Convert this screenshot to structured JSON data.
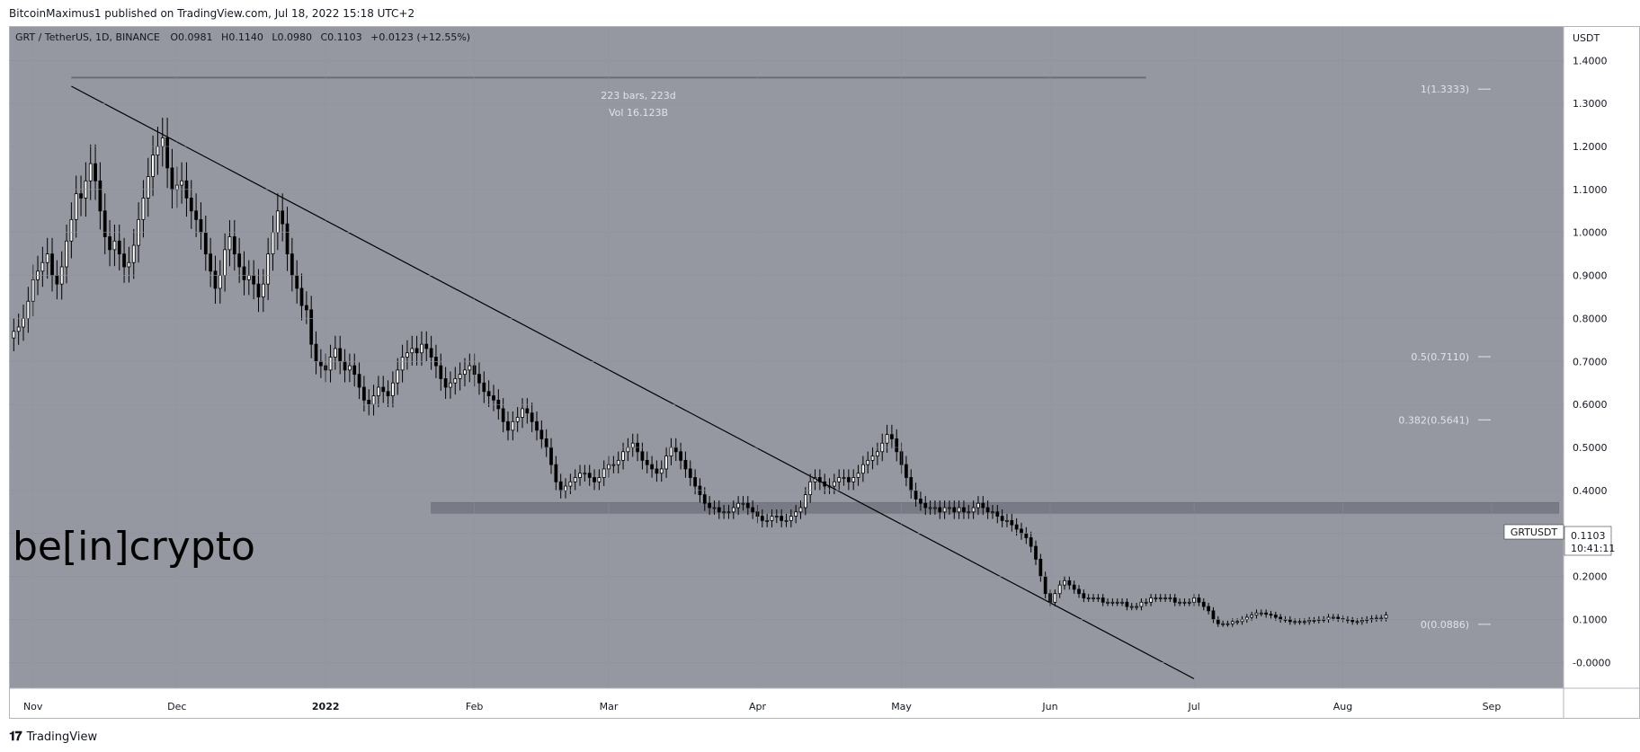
{
  "header": {
    "publisher": "BitcoinMaximus1 published on TradingView.com, Jul 18, 2022 15:18 UTC+2"
  },
  "footer": {
    "brand": "TradingView"
  },
  "watermark": {
    "text": "be[in]crypto"
  },
  "chart_data": {
    "type": "candlestick",
    "symbol_line": {
      "title": "GRT / TetherUS, 1D, BINANCE",
      "o_label": "O",
      "o_value": "0.0981",
      "h_label": "H",
      "h_value": "0.1140",
      "l_label": "L",
      "l_value": "0.0980",
      "c_label": "C",
      "c_value": "0.1103",
      "change": "+0.0123 (+12.55%)"
    },
    "y_axis": {
      "unit": "USDT",
      "ticks": [
        "1.4000",
        "1.3000",
        "1.2000",
        "1.1000",
        "1.0000",
        "0.9000",
        "0.8000",
        "0.7000",
        "0.6000",
        "0.5000",
        "0.4000",
        "0.3000",
        "0.2000",
        "0.1000",
        "-0.0000"
      ],
      "range": [
        -0.06,
        1.48
      ]
    },
    "x_axis": {
      "ticks": [
        "Nov",
        "Dec",
        "2022",
        "Feb",
        "Mar",
        "Apr",
        "May",
        "Jun",
        "Jul",
        "Aug",
        "Sep"
      ],
      "range": [
        "2021-10-27",
        "2022-09-16"
      ]
    },
    "measure": {
      "bars_text": "223 bars, 223d",
      "vol_text": "Vol 16.123B"
    },
    "fib_levels": [
      {
        "label": "1(1.3333)",
        "value": 1.3333
      },
      {
        "label": "0.5(0.7110)",
        "value": 0.711
      },
      {
        "label": "0.382(0.5641)",
        "value": 0.5641
      },
      {
        "label": "0(0.0886)",
        "value": 0.0886
      }
    ],
    "price_label": {
      "symbol": "GRTUSDT",
      "price": "0.1103",
      "countdown": "10:41:11"
    },
    "trendline": {
      "x1": "2021-11-09",
      "y1": 1.34,
      "x2": "2022-07-01",
      "y2": -0.038
    },
    "support_zone": {
      "x1": "2022-01-23",
      "x2": "2022-09-15",
      "y_low": 0.347,
      "y_high": 0.372
    },
    "measure_line": {
      "x1": "2021-11-09",
      "x2": "2022-06-21",
      "y": 1.36
    },
    "candle_dates": {
      "start": "2021-10-28",
      "step_days": 1
    },
    "closes": [
      0.77,
      0.78,
      0.8,
      0.84,
      0.89,
      0.91,
      0.93,
      0.95,
      0.9,
      0.88,
      0.92,
      0.98,
      1.03,
      1.09,
      1.08,
      1.12,
      1.16,
      1.12,
      1.05,
      0.99,
      0.96,
      0.98,
      0.95,
      0.92,
      0.93,
      0.97,
      1.03,
      1.08,
      1.13,
      1.18,
      1.2,
      1.22,
      1.15,
      1.1,
      1.11,
      1.12,
      1.08,
      1.05,
      1.03,
      1.0,
      0.95,
      0.91,
      0.87,
      0.9,
      0.96,
      0.99,
      0.95,
      0.92,
      0.89,
      0.9,
      0.88,
      0.85,
      0.88,
      0.95,
      1.0,
      1.05,
      1.02,
      0.95,
      0.9,
      0.87,
      0.83,
      0.82,
      0.74,
      0.7,
      0.69,
      0.68,
      0.71,
      0.73,
      0.7,
      0.68,
      0.69,
      0.67,
      0.64,
      0.61,
      0.6,
      0.62,
      0.64,
      0.63,
      0.62,
      0.65,
      0.68,
      0.71,
      0.72,
      0.73,
      0.72,
      0.74,
      0.73,
      0.71,
      0.69,
      0.66,
      0.64,
      0.65,
      0.66,
      0.67,
      0.68,
      0.69,
      0.67,
      0.65,
      0.63,
      0.62,
      0.61,
      0.59,
      0.56,
      0.54,
      0.56,
      0.57,
      0.59,
      0.58,
      0.56,
      0.54,
      0.52,
      0.5,
      0.46,
      0.42,
      0.4,
      0.41,
      0.42,
      0.43,
      0.44,
      0.44,
      0.43,
      0.42,
      0.43,
      0.45,
      0.46,
      0.46,
      0.47,
      0.49,
      0.5,
      0.51,
      0.49,
      0.47,
      0.46,
      0.45,
      0.44,
      0.45,
      0.48,
      0.5,
      0.49,
      0.47,
      0.45,
      0.43,
      0.41,
      0.39,
      0.37,
      0.36,
      0.36,
      0.35,
      0.35,
      0.35,
      0.36,
      0.37,
      0.37,
      0.36,
      0.35,
      0.34,
      0.33,
      0.33,
      0.34,
      0.34,
      0.33,
      0.33,
      0.34,
      0.35,
      0.36,
      0.39,
      0.42,
      0.43,
      0.42,
      0.41,
      0.41,
      0.42,
      0.43,
      0.43,
      0.42,
      0.43,
      0.44,
      0.46,
      0.47,
      0.48,
      0.49,
      0.51,
      0.53,
      0.52,
      0.49,
      0.46,
      0.43,
      0.4,
      0.38,
      0.37,
      0.36,
      0.36,
      0.36,
      0.35,
      0.36,
      0.36,
      0.35,
      0.36,
      0.35,
      0.35,
      0.36,
      0.37,
      0.36,
      0.35,
      0.35,
      0.34,
      0.33,
      0.33,
      0.32,
      0.31,
      0.3,
      0.29,
      0.27,
      0.24,
      0.2,
      0.16,
      0.14,
      0.16,
      0.18,
      0.19,
      0.18,
      0.17,
      0.16,
      0.15,
      0.15,
      0.15,
      0.15,
      0.14,
      0.14,
      0.14,
      0.14,
      0.14,
      0.13,
      0.13,
      0.13,
      0.14,
      0.14,
      0.15,
      0.15,
      0.15,
      0.15,
      0.15,
      0.14,
      0.14,
      0.14,
      0.14,
      0.15,
      0.14,
      0.13,
      0.12,
      0.1,
      0.09,
      0.09,
      0.09,
      0.095,
      0.095,
      0.1,
      0.105,
      0.11,
      0.115,
      0.115,
      0.112,
      0.11,
      0.105,
      0.1,
      0.1,
      0.095,
      0.095,
      0.095,
      0.095,
      0.098,
      0.098,
      0.1,
      0.1,
      0.105,
      0.105,
      0.102,
      0.1,
      0.098,
      0.095,
      0.095,
      0.098,
      0.1,
      0.102,
      0.103,
      0.103,
      0.11
    ]
  },
  "colors": {
    "chart_bg": "#9598a1",
    "axis_bg": "#ffffff",
    "candle": "#000000",
    "grid": "#8f929b",
    "zone": "#787b86",
    "trendline": "#000000",
    "measure_line": "#6b6e77",
    "text_light": "#e0e3eb",
    "text_dark": "#131722"
  }
}
